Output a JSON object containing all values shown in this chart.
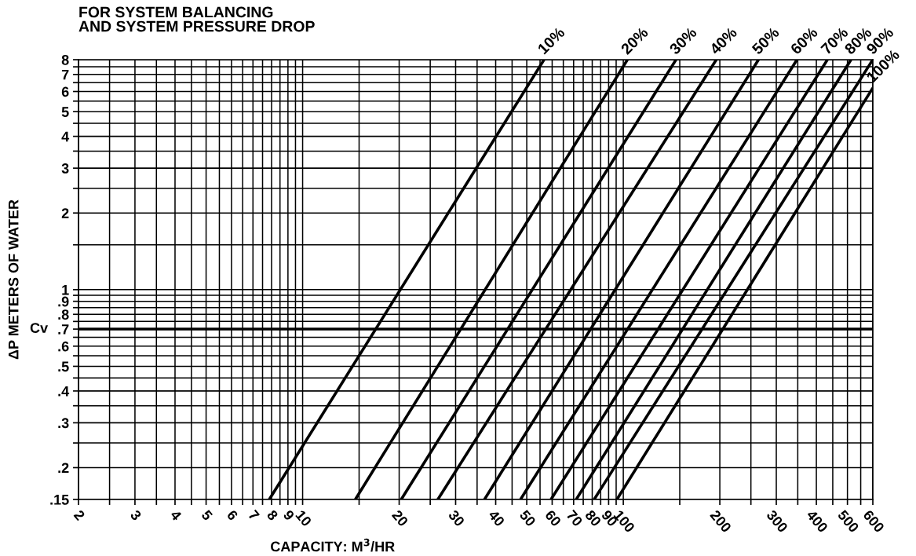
{
  "chart_data": {
    "type": "line",
    "title": "FOR SYSTEM BALANCING\nAND SYSTEM PRESSURE DROP",
    "xlabel": "CAPACITY: M$^{3}$/HR",
    "ylabel": "ΔP METERS OF WATER",
    "log": "xy",
    "grid": true,
    "marker": "none",
    "line_style": "solid",
    "xlim": [
      2,
      600
    ],
    "ylim": [
      0.15,
      8
    ],
    "xticks": [
      2,
      {
        "value": 2.5,
        "label": null
      },
      3,
      {
        "value": 3.5,
        "label": null
      },
      4,
      {
        "value": 4.5,
        "label": null
      },
      5,
      {
        "value": 5.5,
        "label": null
      },
      6,
      {
        "value": 6.5,
        "label": null
      },
      7,
      {
        "value": 7.5,
        "label": null
      },
      8,
      {
        "value": 8.5,
        "label": null
      },
      9,
      {
        "value": 9.5,
        "label": null
      },
      10,
      {
        "value": 15,
        "label": null
      },
      20,
      {
        "value": 25,
        "label": null
      },
      30,
      {
        "value": 35,
        "label": null
      },
      40,
      {
        "value": 45,
        "label": null
      },
      50,
      {
        "value": 55,
        "label": null
      },
      60,
      {
        "value": 65,
        "label": null
      },
      70,
      {
        "value": 75,
        "label": null
      },
      80,
      {
        "value": 85,
        "label": null
      },
      90,
      {
        "value": 95,
        "label": null
      },
      100,
      {
        "value": 150,
        "label": null
      },
      200,
      {
        "value": 250,
        "label": null
      },
      300,
      {
        "value": 350,
        "label": null
      },
      400,
      {
        "value": 450,
        "label": null
      },
      500,
      {
        "value": 550,
        "label": null
      },
      600
    ],
    "yticks": [
      {
        "value": 0.15,
        "label": ".15"
      },
      {
        "value": 0.2,
        "label": ".2"
      },
      {
        "value": 0.25,
        "label": null
      },
      {
        "value": 0.3,
        "label": ".3"
      },
      {
        "value": 0.35,
        "label": null
      },
      {
        "value": 0.4,
        "label": ".4"
      },
      {
        "value": 0.45,
        "label": null
      },
      {
        "value": 0.5,
        "label": ".5"
      },
      {
        "value": 0.55,
        "label": null
      },
      {
        "value": 0.6,
        "label": ".6"
      },
      {
        "value": 0.65,
        "label": null
      },
      {
        "value": 0.7,
        "label": ".7"
      },
      {
        "value": 0.75,
        "label": null
      },
      {
        "value": 0.8,
        "label": ".8"
      },
      {
        "value": 0.85,
        "label": null
      },
      {
        "value": 0.9,
        "label": ".9"
      },
      {
        "value": 0.95,
        "label": null
      },
      1,
      {
        "value": 1.5,
        "label": null
      },
      2,
      {
        "value": 2.5,
        "label": null
      },
      3,
      {
        "value": 3.5,
        "label": null
      },
      4,
      {
        "value": 4.5,
        "label": null
      },
      5,
      {
        "value": 5.5,
        "label": null
      },
      6,
      {
        "value": 6.5,
        "label": null
      },
      7,
      {
        "value": 7.5,
        "label": null
      },
      8
    ],
    "ref_lines": [
      {
        "axis": "y",
        "value": 0.7,
        "label": "Cv",
        "color": "#000000"
      }
    ],
    "series": [
      {
        "name": "10%",
        "color": "#000000",
        "x": [
          7.87,
          56.6
        ],
        "values": [
          0.15,
          8
        ]
      },
      {
        "name": "20%",
        "color": "#000000",
        "x": [
          14.6,
          103
        ],
        "values": [
          0.15,
          8
        ]
      },
      {
        "name": "30%",
        "color": "#000000",
        "x": [
          20.3,
          146
        ],
        "values": [
          0.15,
          8
        ]
      },
      {
        "name": "40%",
        "color": "#000000",
        "x": [
          26.4,
          195
        ],
        "values": [
          0.15,
          8
        ]
      },
      {
        "name": "50%",
        "color": "#000000",
        "x": [
          36.9,
          264
        ],
        "values": [
          0.15,
          8
        ]
      },
      {
        "name": "60%",
        "color": "#000000",
        "x": [
          47.8,
          348
        ],
        "values": [
          0.15,
          8
        ]
      },
      {
        "name": "70%",
        "color": "#000000",
        "x": [
          59.5,
          433
        ],
        "values": [
          0.15,
          8
        ]
      },
      {
        "name": "80%",
        "color": "#000000",
        "x": [
          71.3,
          513
        ],
        "values": [
          0.15,
          8
        ]
      },
      {
        "name": "90%",
        "color": "#000000",
        "x": [
          81.1,
          600
        ],
        "values": [
          0.15,
          8
        ]
      },
      {
        "name": "100%",
        "color": "#000000",
        "x": [
          95.5,
          600
        ],
        "values": [
          0.15,
          6.2
        ]
      }
    ]
  }
}
